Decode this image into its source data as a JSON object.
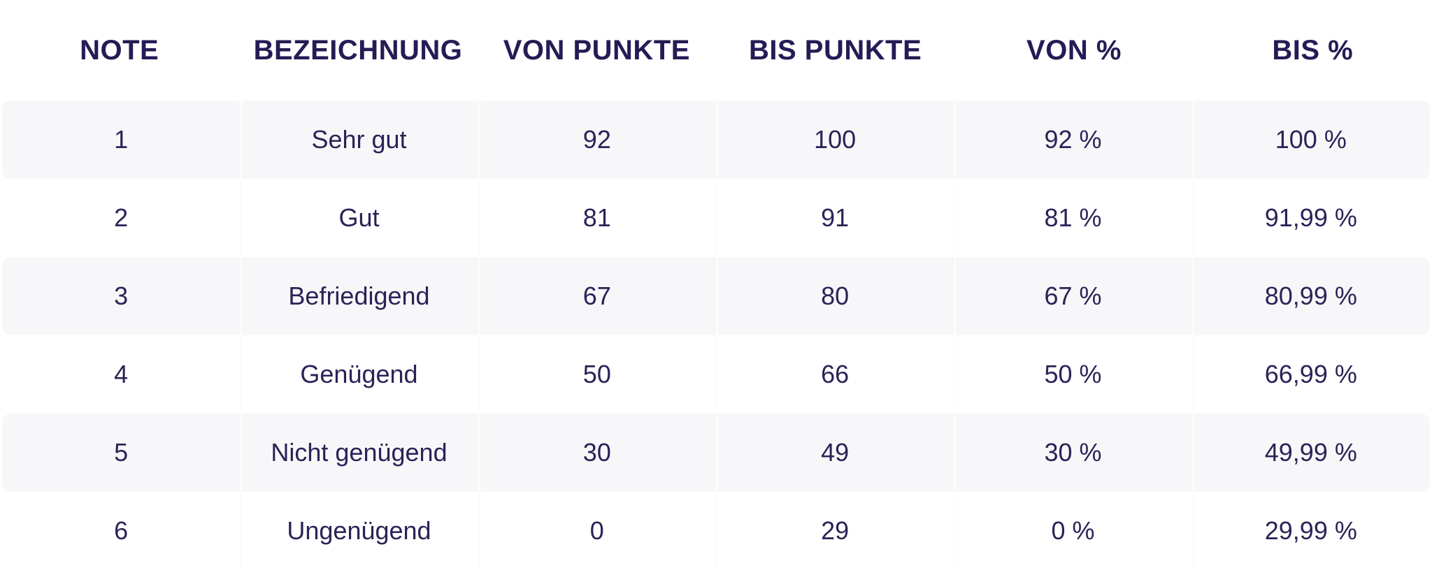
{
  "table": {
    "headers": [
      {
        "key": "note",
        "label": "NOTE"
      },
      {
        "key": "bezeichnung",
        "label": "BEZEICHNUNG"
      },
      {
        "key": "von_punkte",
        "label": "VON PUNKTE"
      },
      {
        "key": "bis_punkte",
        "label": "BIS PUNKTE"
      },
      {
        "key": "von_prozent",
        "label": "VON %"
      },
      {
        "key": "bis_prozent",
        "label": "BIS %"
      }
    ],
    "rows": [
      {
        "note": "1",
        "bezeichnung": "Sehr gut",
        "von_punkte": "92",
        "bis_punkte": "100",
        "von_prozent": "92 %",
        "bis_prozent": "100 %"
      },
      {
        "note": "2",
        "bezeichnung": "Gut",
        "von_punkte": "81",
        "bis_punkte": "91",
        "von_prozent": "81 %",
        "bis_prozent": "91,99 %"
      },
      {
        "note": "3",
        "bezeichnung": "Befriedigend",
        "von_punkte": "67",
        "bis_punkte": "80",
        "von_prozent": "67 %",
        "bis_prozent": "80,99 %"
      },
      {
        "note": "4",
        "bezeichnung": "Genügend",
        "von_punkte": "50",
        "bis_punkte": "66",
        "von_prozent": "50 %",
        "bis_prozent": "66,99 %"
      },
      {
        "note": "5",
        "bezeichnung": "Nicht genügend",
        "von_punkte": "30",
        "bis_punkte": "49",
        "von_prozent": "30 %",
        "bis_prozent": "49,99 %"
      },
      {
        "note": "6",
        "bezeichnung": "Ungenügend",
        "von_punkte": "0",
        "bis_punkte": "29",
        "von_prozent": "0 %",
        "bis_prozent": "29,99 %"
      }
    ]
  },
  "colors": {
    "background": "#ffffff",
    "stripe": "#f7f7f9",
    "divider": "#fcfcfd",
    "header_text": "#241c55",
    "body_text": "#2a2357"
  }
}
